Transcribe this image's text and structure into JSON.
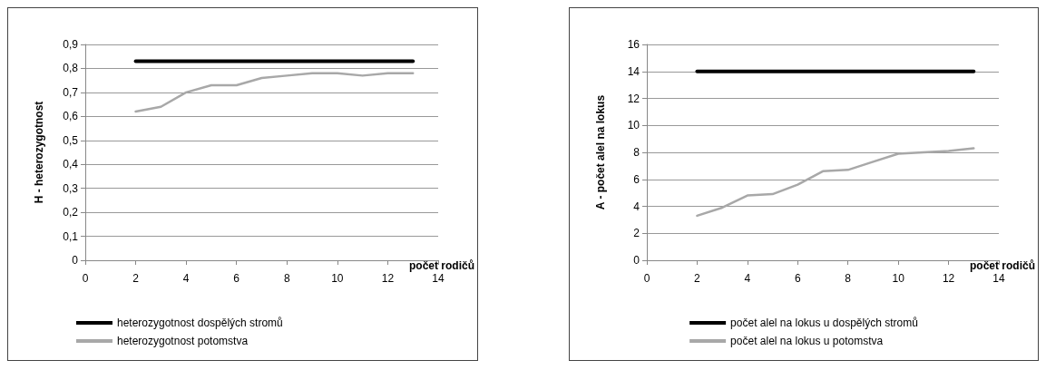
{
  "chart_data": [
    {
      "type": "line",
      "xlabel": "počet rodičů",
      "ylabel": "H - heterozygotnost",
      "x": [
        2,
        3,
        4,
        5,
        6,
        7,
        8,
        9,
        10,
        11,
        12,
        13
      ],
      "series": [
        {
          "name": "heterozygotnost dospělých stromů",
          "color": "#000000",
          "values": [
            0.83,
            0.83,
            0.83,
            0.83,
            0.83,
            0.83,
            0.83,
            0.83,
            0.83,
            0.83,
            0.83,
            0.83
          ]
        },
        {
          "name": "heterozygotnost potomstva",
          "color": "#a8a8a8",
          "values": [
            0.62,
            0.64,
            0.7,
            0.73,
            0.73,
            0.76,
            0.77,
            0.78,
            0.78,
            0.77,
            0.78,
            0.78
          ]
        }
      ],
      "xlim": [
        0,
        14
      ],
      "xticks": [
        0,
        2,
        4,
        6,
        8,
        10,
        12,
        14
      ],
      "ylim": [
        0,
        0.9
      ],
      "yticks": [
        0,
        {
          "value": 0.1,
          "label": "0,1"
        },
        {
          "value": 0.2,
          "label": "0,2"
        },
        {
          "value": 0.3,
          "label": "0,3"
        },
        {
          "value": 0.4,
          "label": "0,4"
        },
        {
          "value": 0.5,
          "label": "0,5"
        },
        {
          "value": 0.6,
          "label": "0,6"
        },
        {
          "value": 0.7,
          "label": "0,7"
        },
        {
          "value": 0.8,
          "label": "0,8"
        },
        {
          "value": 0.9,
          "label": "0,9"
        }
      ],
      "grid": "y",
      "legend": "bottom left",
      "marker": "none"
    },
    {
      "type": "line",
      "xlabel": "počet rodičů",
      "ylabel": "A - počet alel na lokus",
      "x": [
        2,
        3,
        4,
        5,
        6,
        7,
        8,
        9,
        10,
        11,
        12,
        13
      ],
      "series": [
        {
          "name": "počet alel na lokus u dospělých stromů",
          "color": "#000000",
          "values": [
            14,
            14,
            14,
            14,
            14,
            14,
            14,
            14,
            14,
            14,
            14,
            14
          ]
        },
        {
          "name": "počet alel na lokus u potomstva",
          "color": "#a8a8a8",
          "values": [
            3.3,
            3.9,
            4.8,
            4.9,
            5.6,
            6.6,
            6.7,
            7.3,
            7.9,
            8.0,
            8.1,
            8.3
          ]
        }
      ],
      "xlim": [
        0,
        14
      ],
      "xticks": [
        0,
        2,
        4,
        6,
        8,
        10,
        12,
        14
      ],
      "ylim": [
        0,
        16
      ],
      "yticks": [
        0,
        2,
        4,
        6,
        8,
        10,
        12,
        14,
        16
      ],
      "grid": "y",
      "legend": "bottom",
      "marker": "none"
    }
  ]
}
